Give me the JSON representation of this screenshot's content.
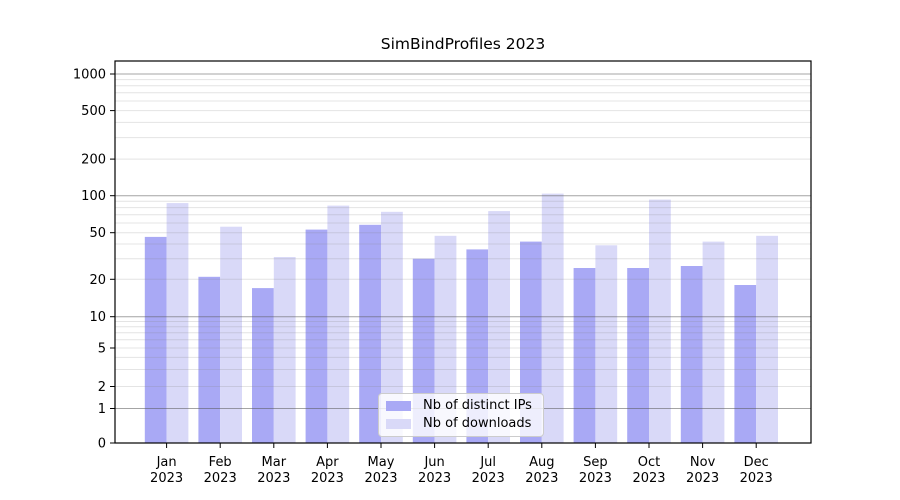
{
  "chart_data": {
    "type": "bar",
    "title": "SimBindProfiles 2023",
    "categories": [
      "Jan",
      "Feb",
      "Mar",
      "Apr",
      "May",
      "Jun",
      "Jul",
      "Aug",
      "Sep",
      "Oct",
      "Nov",
      "Dec"
    ],
    "year_label": "2023",
    "series": [
      {
        "name": "Nb of distinct IPs",
        "color": "#a9a9f5",
        "values": [
          46,
          21,
          17,
          53,
          58,
          30,
          36,
          42,
          25,
          25,
          26,
          18
        ]
      },
      {
        "name": "Nb of downloads",
        "color": "#d9d9f8",
        "values": [
          87,
          56,
          31,
          83,
          74,
          47,
          75,
          104,
          39,
          93,
          42,
          47
        ]
      }
    ],
    "xlabel": "",
    "ylabel": "",
    "yscale": "symlog",
    "yticks": [
      0,
      1,
      2,
      5,
      10,
      20,
      50,
      100,
      200,
      500,
      1000
    ],
    "ylim": [
      0,
      1300
    ],
    "grid": "both",
    "legend_position": "lower center"
  }
}
